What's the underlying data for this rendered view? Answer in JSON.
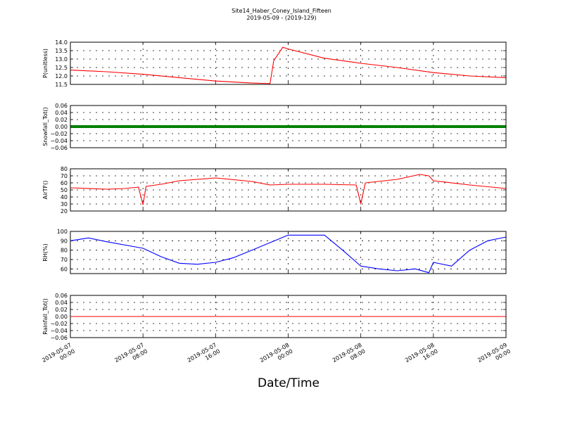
{
  "figure": {
    "title": "Site14_Haber_Coney_Island_Fifteen",
    "subtitle": "2019-05-09 - (2019-129)",
    "xlabel": "Date/Time"
  },
  "chart_data": [
    {
      "type": "line",
      "ylabel": "P(unitless)",
      "color": "#ff0000",
      "ylim": [
        11.5,
        14.0
      ],
      "yticks": [
        "11.5",
        "12.0",
        "12.5",
        "13.0",
        "13.5",
        "14.0"
      ],
      "grid": true,
      "x": [
        "2019-05-07 00:00",
        "2019-05-07 04:00",
        "2019-05-07 08:00",
        "2019-05-07 12:00",
        "2019-05-07 16:00",
        "2019-05-07 20:00",
        "2019-05-07 22:00",
        "2019-05-07 22:24",
        "2019-05-07 23:24",
        "2019-05-08 00:00",
        "2019-05-08 04:00",
        "2019-05-08 08:00",
        "2019-05-08 12:00",
        "2019-05-08 16:00",
        "2019-05-08 20:00",
        "2019-05-09 00:00"
      ],
      "y": [
        12.35,
        12.25,
        12.1,
        11.9,
        11.7,
        11.58,
        11.55,
        12.9,
        13.7,
        13.6,
        13.05,
        12.75,
        12.5,
        12.2,
        12.0,
        11.9
      ]
    },
    {
      "type": "line",
      "ylabel": "Snowfall_Tot()",
      "color": "#008000",
      "ylim": [
        -0.06,
        0.06
      ],
      "yticks": [
        "−0.06",
        "−0.04",
        "−0.02",
        "0.00",
        "0.02",
        "0.04",
        "0.06"
      ],
      "grid": true,
      "x": [
        "2019-05-07 00:00",
        "2019-05-09 00:00"
      ],
      "y": [
        0.0,
        0.0
      ]
    },
    {
      "type": "line",
      "ylabel": "AirTF()",
      "color": "#ff0000",
      "ylim": [
        20,
        80
      ],
      "yticks": [
        "20",
        "30",
        "40",
        "50",
        "60",
        "70",
        "80"
      ],
      "grid": true,
      "x": [
        "2019-05-07 00:00",
        "2019-05-07 04:00",
        "2019-05-07 06:00",
        "2019-05-07 07:30",
        "2019-05-07 08:00",
        "2019-05-07 08:20",
        "2019-05-07 10:00",
        "2019-05-07 12:00",
        "2019-05-07 16:00",
        "2019-05-07 20:00",
        "2019-05-07 22:00",
        "2019-05-08 00:00",
        "2019-05-08 04:00",
        "2019-05-08 07:30",
        "2019-05-08 08:00",
        "2019-05-08 08:30",
        "2019-05-08 12:00",
        "2019-05-08 14:30",
        "2019-05-08 15:30",
        "2019-05-08 16:00",
        "2019-05-08 20:00",
        "2019-05-09 00:00"
      ],
      "y": [
        53,
        51,
        52,
        54,
        29,
        55,
        58,
        63,
        67,
        62,
        57,
        58,
        58,
        57,
        30,
        60,
        65,
        72,
        70,
        63,
        57,
        52
      ]
    },
    {
      "type": "line",
      "ylabel": "RH(%)",
      "color": "#0000ff",
      "ylim": [
        55,
        100
      ],
      "yticks": [
        "60",
        "70",
        "80",
        "90",
        "100"
      ],
      "grid": true,
      "x": [
        "2019-05-07 00:00",
        "2019-05-07 02:00",
        "2019-05-07 04:00",
        "2019-05-07 08:00",
        "2019-05-07 10:00",
        "2019-05-07 12:00",
        "2019-05-07 14:00",
        "2019-05-07 16:00",
        "2019-05-07 18:00",
        "2019-05-07 20:00",
        "2019-05-07 22:00",
        "2019-05-08 00:00",
        "2019-05-08 04:00",
        "2019-05-08 06:00",
        "2019-05-08 08:00",
        "2019-05-08 10:00",
        "2019-05-08 12:00",
        "2019-05-08 14:00",
        "2019-05-08 15:30",
        "2019-05-08 16:00",
        "2019-05-08 18:00",
        "2019-05-08 20:00",
        "2019-05-08 22:00",
        "2019-05-09 00:00"
      ],
      "y": [
        90,
        93,
        89,
        82,
        73,
        66,
        65,
        67,
        72,
        80,
        88,
        96,
        96,
        80,
        63,
        60,
        58,
        60,
        56,
        67,
        63,
        80,
        90,
        94
      ]
    },
    {
      "type": "line",
      "ylabel": "Rainfall_Tot()",
      "color": "#ff0000",
      "ylim": [
        -0.06,
        0.06
      ],
      "yticks": [
        "−0.06",
        "−0.04",
        "−0.02",
        "0.00",
        "0.02",
        "0.04",
        "0.06"
      ],
      "grid": true,
      "x": [
        "2019-05-07 00:00",
        "2019-05-09 00:00"
      ],
      "y": [
        0.0,
        0.0
      ]
    }
  ],
  "xticks": [
    [
      "2019-05-07",
      "00:00"
    ],
    [
      "2019-05-07",
      "08:00"
    ],
    [
      "2019-05-07",
      "16:00"
    ],
    [
      "2019-05-08",
      "00:00"
    ],
    [
      "2019-05-08",
      "08:00"
    ],
    [
      "2019-05-08",
      "16:00"
    ],
    [
      "2019-05-09",
      "00:00"
    ]
  ],
  "xrange": [
    "2019-05-07 00:00",
    "2019-05-09 00:00"
  ]
}
